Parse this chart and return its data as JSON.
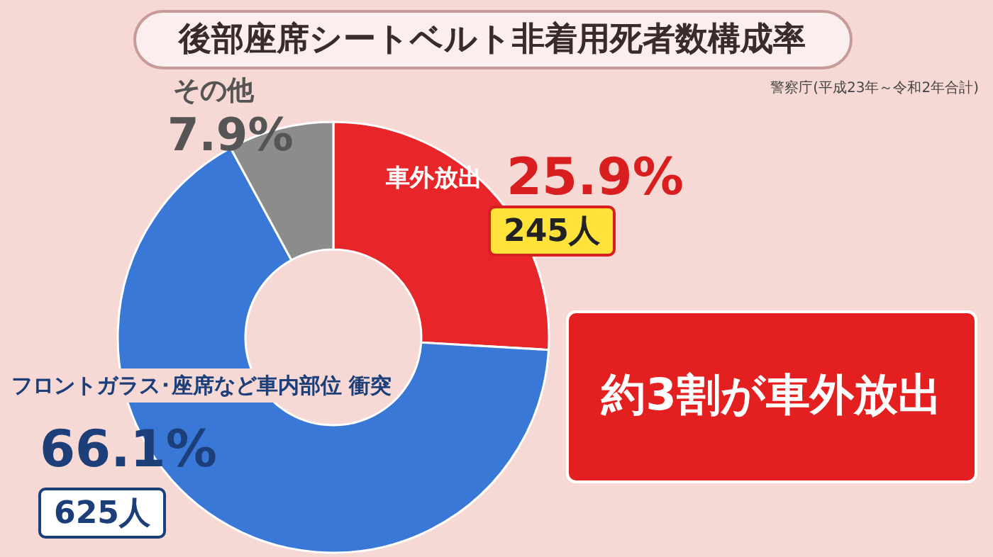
{
  "chart_data": {
    "type": "donut",
    "title": "後部座席シートベルト非着用死者数構成率",
    "subtitle": "警察庁(平成23年～令和2年合計)",
    "categories": [
      "車外放出",
      "フロントガラス･座席など車内部位 衝突",
      "その他"
    ],
    "values": [
      25.9,
      66.1,
      7.9
    ],
    "colors": [
      "#e8262a",
      "#3a78d8",
      "#8c8c8c"
    ],
    "value_labels": [
      "25.9%",
      "66.1%",
      "7.9%"
    ],
    "annotations": [
      "245人",
      "625人",
      "約3割が車外放出"
    ]
  }
}
